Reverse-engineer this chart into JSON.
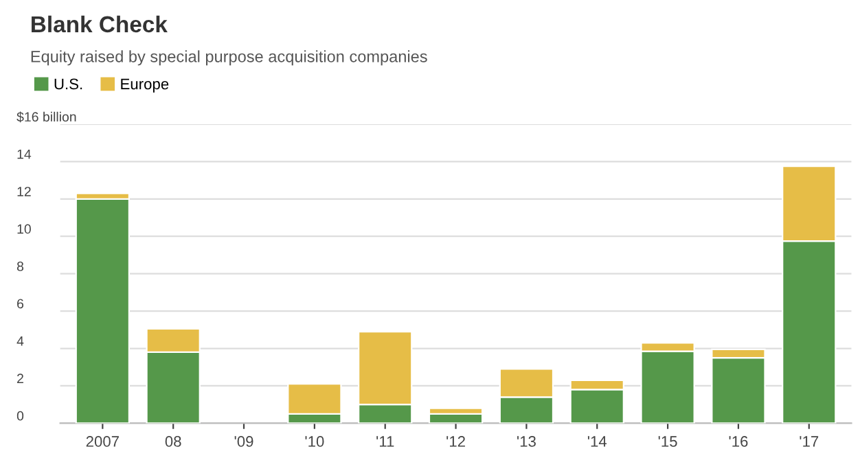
{
  "chart_data": {
    "type": "bar",
    "title": "Blank Check",
    "subtitle": "Equity raised by special purpose acquisition companies",
    "categories": [
      "2007",
      "08",
      "'09",
      "'10",
      "'11",
      "'12",
      "'13",
      "'14",
      "'15",
      "'16",
      "'17"
    ],
    "series": [
      {
        "name": "U.S.",
        "color": "#55984a",
        "values": [
          12.0,
          3.8,
          null,
          0.5,
          1.0,
          0.5,
          1.4,
          1.8,
          3.85,
          3.5,
          9.75
        ]
      },
      {
        "name": "Europe",
        "color": "#e6bd47",
        "values": [
          0.3,
          1.25,
          null,
          1.6,
          3.9,
          0.3,
          1.5,
          0.5,
          0.45,
          0.45,
          4.0
        ]
      }
    ],
    "stacked": true,
    "ylim": [
      0,
      16
    ],
    "yticks": [
      0,
      2,
      4,
      6,
      8,
      10,
      12,
      14,
      {
        "value": 16,
        "label": "$16 billion"
      }
    ],
    "grid": "y",
    "legend": "top left"
  }
}
